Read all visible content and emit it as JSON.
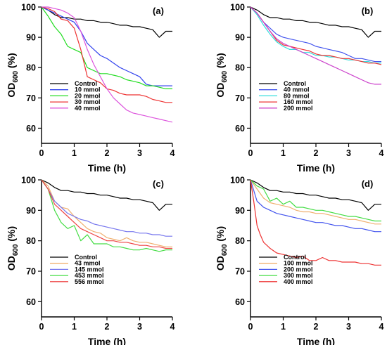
{
  "chart_data": [
    {
      "type": "line",
      "panel_label": "(a)",
      "xlabel": "Time (h)",
      "ylabel_main": "OD",
      "ylabel_sub": "600",
      "ylabel_unit": " (%)",
      "xlim": [
        0,
        4
      ],
      "ylim": [
        55,
        100
      ],
      "xticks": [
        0,
        1,
        2,
        3,
        4
      ],
      "yticks": [
        60,
        70,
        80,
        90,
        100
      ],
      "legend_position": "bottom-left",
      "series": [
        {
          "name": "Control",
          "color": "#000000",
          "x": [
            0,
            0.2,
            0.4,
            0.6,
            0.8,
            1.0,
            1.2,
            1.4,
            1.6,
            1.8,
            2.0,
            2.2,
            2.4,
            2.6,
            2.8,
            3.0,
            3.2,
            3.4,
            3.6,
            3.8,
            4.0
          ],
          "y": [
            100,
            99,
            97.5,
            96.5,
            96.5,
            96,
            96,
            95.5,
            95.5,
            95,
            95,
            94.5,
            94,
            94,
            93.5,
            93.5,
            93,
            92.5,
            90,
            92,
            92
          ]
        },
        {
          "name": "10 mmol",
          "color": "#3344ee",
          "x": [
            0,
            0.2,
            0.4,
            0.6,
            0.8,
            1.0,
            1.2,
            1.4,
            1.6,
            1.8,
            2.0,
            2.2,
            2.4,
            2.6,
            2.8,
            3.0,
            3.2,
            3.4,
            3.6,
            3.8,
            4.0
          ],
          "y": [
            100,
            99,
            98,
            97,
            96,
            95,
            92,
            88,
            86,
            84,
            83,
            81.5,
            80,
            79,
            78,
            77,
            74.5,
            74,
            74,
            74,
            74
          ]
        },
        {
          "name": "20 mmol",
          "color": "#22dd22",
          "x": [
            0,
            0.2,
            0.4,
            0.6,
            0.8,
            1.0,
            1.2,
            1.4,
            1.6,
            1.8,
            2.0,
            2.2,
            2.4,
            2.6,
            2.8,
            3.0,
            3.2,
            3.4,
            3.6,
            3.8,
            4.0
          ],
          "y": [
            100,
            97,
            93.5,
            91,
            87,
            86,
            85,
            80,
            79,
            78,
            78,
            77.5,
            77,
            76,
            75.5,
            75,
            74,
            74,
            73.5,
            73,
            73
          ]
        },
        {
          "name": "30 mmol",
          "color": "#ee3333",
          "x": [
            0,
            0.2,
            0.4,
            0.6,
            0.8,
            1.0,
            1.2,
            1.4,
            1.6,
            1.8,
            2.0,
            2.2,
            2.4,
            2.6,
            2.8,
            3.0,
            3.2,
            3.4,
            3.6,
            3.8,
            4.0
          ],
          "y": [
            100,
            99.5,
            98.5,
            96,
            95.5,
            93,
            86,
            77,
            76,
            75,
            73,
            72.5,
            71.5,
            71,
            71,
            71,
            70.5,
            69.5,
            69,
            68.5,
            68.5
          ]
        },
        {
          "name": "40 mmol",
          "color": "#dd55dd",
          "x": [
            0,
            0.2,
            0.4,
            0.6,
            0.8,
            1.0,
            1.2,
            1.4,
            1.6,
            1.8,
            2.0,
            2.2,
            2.4,
            2.6,
            2.8,
            3.0,
            3.2,
            3.4,
            3.6,
            3.8,
            4.0
          ],
          "y": [
            100,
            100,
            99.5,
            99,
            98,
            96.5,
            92,
            86,
            81,
            77,
            73,
            70,
            68,
            66,
            65,
            64.5,
            64,
            63.5,
            63,
            62.5,
            62
          ]
        }
      ]
    },
    {
      "type": "line",
      "panel_label": "(b)",
      "xlabel": "Time (h)",
      "ylabel_main": "OD",
      "ylabel_sub": "600",
      "ylabel_unit": " (%)",
      "xlim": [
        0,
        4
      ],
      "ylim": [
        55,
        100
      ],
      "xticks": [
        0,
        1,
        2,
        3,
        4
      ],
      "yticks": [
        60,
        70,
        80,
        90,
        100
      ],
      "legend_position": "bottom-left",
      "series": [
        {
          "name": "Control",
          "color": "#000000",
          "x": [
            0,
            0.2,
            0.4,
            0.6,
            0.8,
            1.0,
            1.2,
            1.4,
            1.6,
            1.8,
            2.0,
            2.2,
            2.4,
            2.6,
            2.8,
            3.0,
            3.2,
            3.4,
            3.6,
            3.8,
            4.0
          ],
          "y": [
            100,
            99,
            97.5,
            96.5,
            96.5,
            96,
            96,
            95.5,
            95.5,
            95,
            95,
            94.5,
            94,
            94,
            93.5,
            93.5,
            93,
            92.5,
            90,
            92,
            92
          ]
        },
        {
          "name": "40 mmol",
          "color": "#4455ee",
          "x": [
            0,
            0.2,
            0.4,
            0.6,
            0.8,
            1.0,
            1.2,
            1.4,
            1.6,
            1.8,
            2.0,
            2.2,
            2.4,
            2.6,
            2.8,
            3.0,
            3.2,
            3.4,
            3.6,
            3.8,
            4.0
          ],
          "y": [
            100,
            98,
            95,
            93,
            91,
            90,
            89.5,
            89,
            88.5,
            88,
            87,
            86.5,
            86,
            85.5,
            85,
            84,
            83,
            83,
            82.5,
            82,
            82
          ]
        },
        {
          "name": "80 mmol",
          "color": "#33dddd",
          "x": [
            0,
            0.2,
            0.4,
            0.6,
            0.8,
            1.0,
            1.2,
            1.4,
            1.6,
            1.8,
            2.0,
            2.2,
            2.4,
            2.6,
            2.8,
            3.0,
            3.2,
            3.4,
            3.6,
            3.8,
            4.0
          ],
          "y": [
            100,
            97.5,
            94,
            91,
            88.5,
            87,
            86,
            86,
            85,
            85,
            84,
            84,
            83.5,
            83.5,
            83,
            82.5,
            82.5,
            82,
            82,
            81.5,
            81.5
          ]
        },
        {
          "name": "160 mmol",
          "color": "#ee3333",
          "x": [
            0,
            0.2,
            0.4,
            0.6,
            0.8,
            1.0,
            1.2,
            1.4,
            1.6,
            1.8,
            2.0,
            2.2,
            2.4,
            2.6,
            2.8,
            3.0,
            3.2,
            3.4,
            3.6,
            3.8,
            4.0
          ],
          "y": [
            100,
            98,
            95,
            92,
            89,
            87.5,
            87,
            86.5,
            86,
            85.5,
            84.5,
            84,
            84,
            83.5,
            83,
            83,
            82.5,
            82,
            81.5,
            81.5,
            81
          ]
        },
        {
          "name": "200 mmol",
          "color": "#cc44cc",
          "x": [
            0,
            0.2,
            0.4,
            0.6,
            0.8,
            1.0,
            1.2,
            1.4,
            1.6,
            1.8,
            2.0,
            2.2,
            2.4,
            2.6,
            2.8,
            3.0,
            3.2,
            3.4,
            3.6,
            3.8,
            4.0
          ],
          "y": [
            100,
            98,
            95,
            92,
            89.5,
            88,
            87,
            86,
            85,
            84,
            83,
            82,
            81,
            80,
            79,
            78,
            77,
            76,
            75,
            74.5,
            74.5
          ]
        }
      ]
    },
    {
      "type": "line",
      "panel_label": "(c)",
      "xlabel": "Time (h)",
      "ylabel_main": "OD",
      "ylabel_sub": "600",
      "ylabel_unit": " (%)",
      "xlim": [
        0,
        4
      ],
      "ylim": [
        55,
        100
      ],
      "xticks": [
        0,
        1,
        2,
        3,
        4
      ],
      "yticks": [
        60,
        70,
        80,
        90,
        100
      ],
      "legend_position": "bottom-left",
      "series": [
        {
          "name": "Control",
          "color": "#000000",
          "x": [
            0,
            0.2,
            0.4,
            0.6,
            0.8,
            1.0,
            1.2,
            1.4,
            1.6,
            1.8,
            2.0,
            2.2,
            2.4,
            2.6,
            2.8,
            3.0,
            3.2,
            3.4,
            3.6,
            3.8,
            4.0
          ],
          "y": [
            100,
            99,
            97.5,
            96.5,
            96.5,
            96,
            96,
            95.5,
            95.5,
            95,
            95,
            94.5,
            94,
            94,
            93.5,
            93.5,
            93,
            92.5,
            90,
            92,
            92
          ]
        },
        {
          "name": "43 mmol",
          "color": "#f0b070",
          "x": [
            0,
            0.2,
            0.4,
            0.6,
            0.8,
            1.0,
            1.2,
            1.4,
            1.6,
            1.8,
            2.0,
            2.2,
            2.4,
            2.6,
            2.8,
            3.0,
            3.2,
            3.4,
            3.6,
            3.8,
            4.0
          ],
          "y": [
            100,
            98,
            93,
            91,
            90.5,
            88,
            86,
            84,
            83,
            82.5,
            81,
            80.5,
            80,
            81,
            80,
            79.5,
            79.5,
            79,
            78.5,
            78,
            78
          ]
        },
        {
          "name": "145 mmol",
          "color": "#7777ee",
          "x": [
            0,
            0.2,
            0.4,
            0.6,
            0.8,
            1.0,
            1.2,
            1.4,
            1.6,
            1.8,
            2.0,
            2.2,
            2.4,
            2.6,
            2.8,
            3.0,
            3.2,
            3.4,
            3.6,
            3.8,
            4.0
          ],
          "y": [
            100,
            97,
            93,
            91,
            89,
            88,
            87,
            86.5,
            85.5,
            85,
            84.5,
            84,
            83.5,
            83,
            83,
            82.5,
            82.5,
            82,
            82,
            81.5,
            81.5
          ]
        },
        {
          "name": "453 mmol",
          "color": "#44dd44",
          "x": [
            0,
            0.2,
            0.4,
            0.6,
            0.8,
            1.0,
            1.2,
            1.4,
            1.6,
            1.8,
            2.0,
            2.2,
            2.4,
            2.6,
            2.8,
            3.0,
            3.2,
            3.4,
            3.6,
            3.8,
            4.0
          ],
          "y": [
            100,
            97,
            90,
            86,
            84,
            85,
            80,
            82,
            79,
            79,
            79,
            78,
            78,
            77.5,
            77,
            77,
            77.5,
            77,
            76.5,
            77,
            77
          ]
        },
        {
          "name": "556 mmol",
          "color": "#ee4444",
          "x": [
            0,
            0.2,
            0.4,
            0.6,
            0.8,
            1.0,
            1.2,
            1.4,
            1.6,
            1.8,
            2.0,
            2.2,
            2.4,
            2.6,
            2.8,
            3.0,
            3.2,
            3.4,
            3.6,
            3.8,
            4.0
          ],
          "y": [
            100,
            97,
            92,
            90,
            88,
            86,
            84,
            83,
            82,
            81,
            80,
            80,
            79.5,
            79.5,
            79,
            78.5,
            78.5,
            78,
            78,
            77.5,
            77.5
          ]
        }
      ]
    },
    {
      "type": "line",
      "panel_label": "(d)",
      "xlabel": "Time (h)",
      "ylabel_main": "OD",
      "ylabel_sub": "600",
      "ylabel_unit": " (%)",
      "xlim": [
        0,
        4
      ],
      "ylim": [
        55,
        100
      ],
      "xticks": [
        0,
        1,
        2,
        3,
        4
      ],
      "yticks": [
        60,
        70,
        80,
        90,
        100
      ],
      "legend_position": "bottom-left",
      "series": [
        {
          "name": "Control",
          "color": "#000000",
          "x": [
            0,
            0.2,
            0.4,
            0.6,
            0.8,
            1.0,
            1.2,
            1.4,
            1.6,
            1.8,
            2.0,
            2.2,
            2.4,
            2.6,
            2.8,
            3.0,
            3.2,
            3.4,
            3.6,
            3.8,
            4.0
          ],
          "y": [
            100,
            99,
            97.5,
            96.5,
            96.5,
            96,
            96,
            95.5,
            95.5,
            95,
            95,
            94.5,
            94,
            94,
            93.5,
            93.5,
            93,
            92.5,
            90,
            92,
            92
          ]
        },
        {
          "name": "100 mmol",
          "color": "#f0b070",
          "x": [
            0,
            0.2,
            0.4,
            0.6,
            0.8,
            1.0,
            1.2,
            1.4,
            1.6,
            1.8,
            2.0,
            2.2,
            2.4,
            2.6,
            2.8,
            3.0,
            3.2,
            3.4,
            3.6,
            3.8,
            4.0
          ],
          "y": [
            100,
            97,
            94,
            92.5,
            92,
            91.5,
            91,
            90,
            89.5,
            89.5,
            89,
            89,
            88.5,
            88,
            87.5,
            87,
            87,
            86.5,
            86,
            85.5,
            85.5
          ]
        },
        {
          "name": "200 mmol",
          "color": "#4455ee",
          "x": [
            0,
            0.2,
            0.4,
            0.6,
            0.8,
            1.0,
            1.2,
            1.4,
            1.6,
            1.8,
            2.0,
            2.2,
            2.4,
            2.6,
            2.8,
            3.0,
            3.2,
            3.4,
            3.6,
            3.8,
            4.0
          ],
          "y": [
            100,
            93,
            91,
            90,
            89,
            88.5,
            88,
            87.5,
            87,
            86.5,
            86,
            86,
            85.5,
            85,
            85,
            84.5,
            84,
            84,
            83.5,
            83,
            83
          ]
        },
        {
          "name": "300 mmol",
          "color": "#44dd44",
          "x": [
            0,
            0.2,
            0.4,
            0.6,
            0.8,
            1.0,
            1.2,
            1.4,
            1.6,
            1.8,
            2.0,
            2.2,
            2.4,
            2.6,
            2.8,
            3.0,
            3.2,
            3.4,
            3.6,
            3.8,
            4.0
          ],
          "y": [
            100,
            98,
            97,
            93,
            94,
            92,
            93,
            91,
            91,
            90.5,
            90,
            90,
            89.5,
            89,
            88.5,
            88,
            88,
            87.5,
            87,
            86.5,
            86.5
          ]
        },
        {
          "name": "400 mmol",
          "color": "#ee3333",
          "x": [
            0,
            0.1,
            0.2,
            0.3,
            0.4,
            0.6,
            0.8,
            1.0,
            1.2,
            1.4,
            1.6,
            1.8,
            2.0,
            2.2,
            2.4,
            2.6,
            2.8,
            3.0,
            3.2,
            3.4,
            3.6,
            3.8,
            4.0
          ],
          "y": [
            100,
            93,
            85,
            82,
            79.5,
            77.5,
            76,
            75.5,
            75,
            74.5,
            75,
            73.5,
            73.5,
            74.5,
            73.5,
            73.5,
            73,
            73,
            73,
            72.5,
            72.5,
            72,
            72
          ]
        }
      ]
    }
  ]
}
